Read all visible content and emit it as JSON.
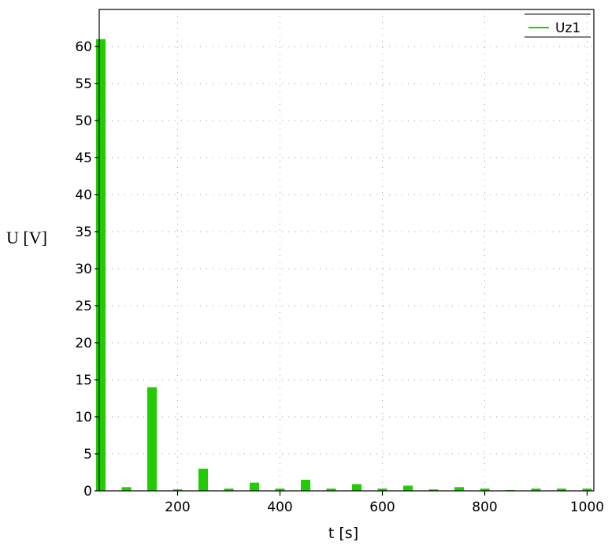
{
  "chart_data": {
    "type": "bar",
    "xlabel": "t [s]",
    "ylabel": "U [V]",
    "xlim": [
      0,
      1000
    ],
    "ylim": [
      0,
      65
    ],
    "xticks": [
      200,
      400,
      600,
      800,
      1000
    ],
    "yticks": [
      0,
      5,
      10,
      15,
      20,
      25,
      30,
      35,
      40,
      45,
      50,
      55,
      60
    ],
    "grid": true,
    "legend_position": "top-right",
    "series": [
      {
        "name": "Uz1",
        "color": "#22cc00",
        "x": [
          50,
          100,
          150,
          200,
          250,
          300,
          350,
          400,
          450,
          500,
          550,
          600,
          650,
          700,
          750,
          800,
          850,
          900,
          950,
          1000
        ],
        "values": [
          61,
          0.5,
          14,
          0.2,
          3,
          0.3,
          1.1,
          0.3,
          1.5,
          0.3,
          0.9,
          0.3,
          0.7,
          0.2,
          0.5,
          0.3,
          0.1,
          0.3,
          0.3,
          0.3
        ]
      }
    ]
  }
}
